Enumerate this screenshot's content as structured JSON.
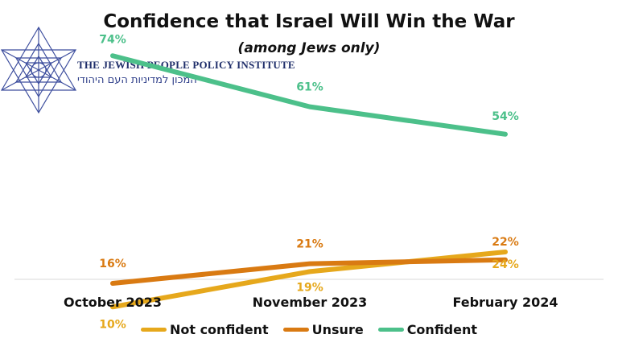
{
  "chart_data": {
    "type": "line",
    "title": "Confidence that Israel Will Win the War",
    "subtitle": "(among Jews only)",
    "categories": [
      "October 2023",
      "November 2023",
      "February 2024"
    ],
    "xlabel": "",
    "ylabel": "",
    "ylim": [
      0,
      80
    ],
    "legend_position": "bottom",
    "series": [
      {
        "name": "Not confident",
        "values": [
          10,
          19,
          24
        ],
        "labels": [
          "10%",
          "19%",
          "24%"
        ],
        "color": "#e6a81c"
      },
      {
        "name": "Unsure",
        "values": [
          16,
          21,
          22
        ],
        "labels": [
          "16%",
          "21%",
          "22%"
        ],
        "color": "#d97a12"
      },
      {
        "name": "Confident",
        "values": [
          74,
          61,
          54
        ],
        "labels": [
          "74%",
          "61%",
          "54%"
        ],
        "color": "#4cc08a"
      }
    ]
  },
  "logo": {
    "name_en": "THE JEWISH PEOPLE POLICY INSTITUTE",
    "name_he": "המכון למדיניות העם היהודי"
  }
}
